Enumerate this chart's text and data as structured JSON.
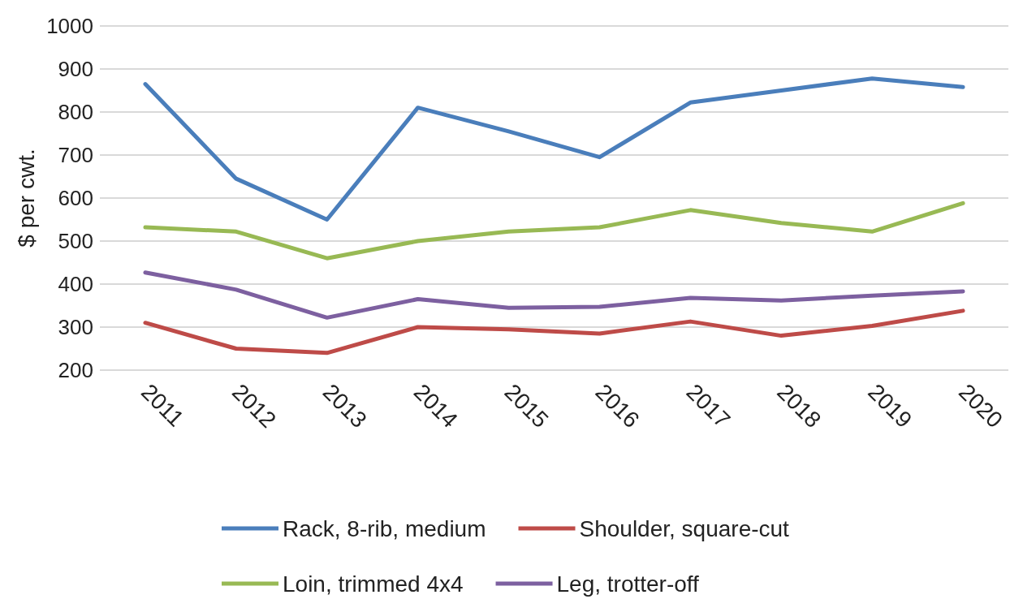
{
  "chart_data": {
    "type": "line",
    "ylabel": "$ per cwt.",
    "categories": [
      "2011",
      "2012",
      "2013",
      "2014",
      "2015",
      "2016",
      "2017",
      "2018",
      "2019",
      "2020"
    ],
    "series": [
      {
        "name": "Rack, 8-rib, medium",
        "color": "#4a7ebb",
        "values": [
          865,
          645,
          550,
          810,
          755,
          695,
          822,
          850,
          878,
          858
        ]
      },
      {
        "name": "Shoulder, square-cut",
        "color": "#be4b48",
        "values": [
          310,
          250,
          240,
          300,
          295,
          285,
          313,
          280,
          303,
          338
        ]
      },
      {
        "name": "Loin, trimmed 4x4",
        "color": "#98b954",
        "values": [
          532,
          522,
          460,
          500,
          522,
          532,
          572,
          542,
          522,
          588
        ]
      },
      {
        "name": "Leg, trotter-off",
        "color": "#7d60a0",
        "values": [
          427,
          387,
          322,
          365,
          345,
          347,
          368,
          362,
          373,
          383
        ]
      }
    ],
    "ylim": [
      200,
      1000
    ],
    "yticks": [
      200,
      300,
      400,
      500,
      600,
      700,
      800,
      900,
      1000
    ],
    "grid": "y",
    "legend": "bottom",
    "marker": "none",
    "line_style": "solid"
  }
}
